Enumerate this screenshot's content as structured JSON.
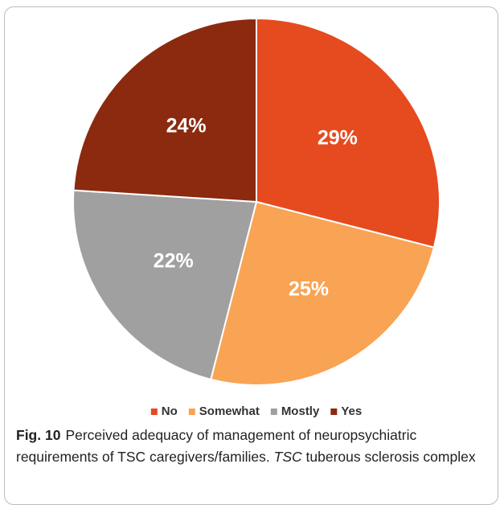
{
  "chart_data": {
    "type": "pie",
    "categories": [
      "No",
      "Somewhat",
      "Mostly",
      "Yes"
    ],
    "values": [
      29,
      25,
      22,
      24
    ],
    "value_labels": [
      "29%",
      "25%",
      "22%",
      "24%"
    ],
    "colors": [
      "#e64a1f",
      "#f9a354",
      "#a0a0a0",
      "#8b2a0f"
    ],
    "legend": "bottom"
  },
  "caption": {
    "label": "Fig. 10",
    "text": "Perceived adequacy of management of neuropsychiatric requirements of TSC caregivers/families.",
    "abbr": "TSC",
    "abbr_text": "tuberous sclerosis complex"
  }
}
